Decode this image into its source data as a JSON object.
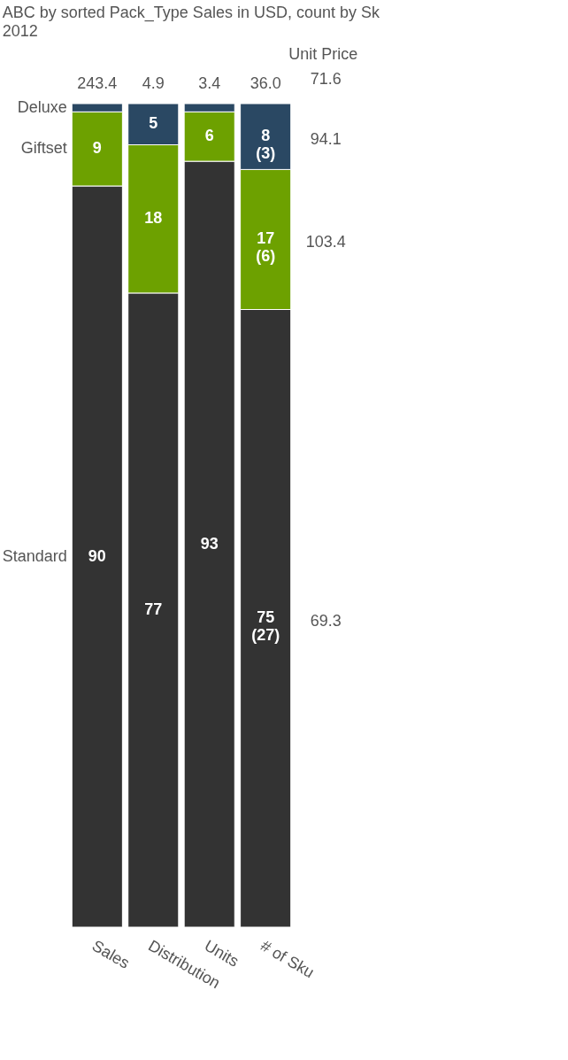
{
  "chart_data": {
    "type": "bar",
    "stacked": true,
    "title": "ABC by sorted Pack_Type Sales in USD, count by Sk",
    "subtitle": "2012",
    "categories": [
      "Sales",
      "Distribution",
      "Units",
      "# of Sku"
    ],
    "series": [
      {
        "name": "Standard",
        "color": "#333333",
        "values": [
          90,
          77,
          93,
          75
        ],
        "value_labels": [
          "90",
          "77",
          "93",
          "75\n(27)"
        ]
      },
      {
        "name": "Giftset",
        "color": "#6da100",
        "values": [
          9,
          18,
          6,
          17
        ],
        "value_labels": [
          "9",
          "18",
          "6",
          "17\n(6)"
        ]
      },
      {
        "name": "Deluxe",
        "color": "#2a4863",
        "values": [
          1,
          5,
          1,
          8
        ],
        "value_labels": [
          null,
          "5",
          null,
          "8\n(3)"
        ]
      }
    ],
    "annotations": [
      "243.4",
      "4.9",
      "3.4",
      "36.0",
      "Unit Price",
      "71.6",
      "69.3",
      "103.4",
      "94.1"
    ],
    "legend": "left",
    "tick_labels": "x"
  }
}
